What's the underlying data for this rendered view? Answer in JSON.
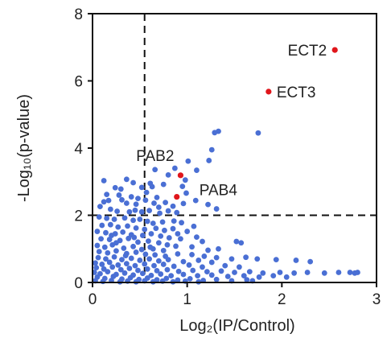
{
  "chart_data": {
    "type": "scatter",
    "title": "",
    "xlabel": "Log₂(IP/Control)",
    "ylabel": "-Log₁₀(p-value)",
    "xlim": [
      0,
      3
    ],
    "ylim": [
      0,
      8
    ],
    "xticks": [
      "0",
      "1",
      "2",
      "3"
    ],
    "yticks": [
      "0",
      "2",
      "4",
      "6",
      "8"
    ],
    "grid": false,
    "thresholds": {
      "x": 0.55,
      "y": 2.0,
      "style": "dashed"
    },
    "colors": {
      "background_points": "#4a6fd4",
      "highlighted_points": "#e0161b",
      "axis": "#111111"
    },
    "highlighted": [
      {
        "label": "ECT2",
        "x": 2.56,
        "y": 6.92
      },
      {
        "label": "ECT3",
        "x": 1.86,
        "y": 5.68
      },
      {
        "label": "PAB2",
        "x": 0.93,
        "y": 3.19
      },
      {
        "label": "PAB4",
        "x": 0.89,
        "y": 2.55
      }
    ],
    "points": [
      [
        1.33,
        4.5
      ],
      [
        1.29,
        4.46
      ],
      [
        1.75,
        4.45
      ],
      [
        1.26,
        3.95
      ],
      [
        1.01,
        3.61
      ],
      [
        1.23,
        3.63
      ],
      [
        0.87,
        3.4
      ],
      [
        0.66,
        3.36
      ],
      [
        1.1,
        3.34
      ],
      [
        0.8,
        3.2
      ],
      [
        0.98,
        3.05
      ],
      [
        0.12,
        3.03
      ],
      [
        0.36,
        3.07
      ],
      [
        0.43,
        2.97
      ],
      [
        0.61,
        2.95
      ],
      [
        0.75,
        2.92
      ],
      [
        0.24,
        2.82
      ],
      [
        0.3,
        2.78
      ],
      [
        0.52,
        2.83
      ],
      [
        0.63,
        2.85
      ],
      [
        0.95,
        2.86
      ],
      [
        0.15,
        2.62
      ],
      [
        0.41,
        2.55
      ],
      [
        0.57,
        2.68
      ],
      [
        0.68,
        2.53
      ],
      [
        0.99,
        2.66
      ],
      [
        1.09,
        2.44
      ],
      [
        0.12,
        2.4
      ],
      [
        0.31,
        2.46
      ],
      [
        0.36,
        2.36
      ],
      [
        0.46,
        2.33
      ],
      [
        0.56,
        2.45
      ],
      [
        0.65,
        2.36
      ],
      [
        0.77,
        2.38
      ],
      [
        0.85,
        2.27
      ],
      [
        0.96,
        2.35
      ],
      [
        1.22,
        2.32
      ],
      [
        1.31,
        2.19
      ],
      [
        0.19,
        2.18
      ],
      [
        0.26,
        2.12
      ],
      [
        0.39,
        2.1
      ],
      [
        0.45,
        2.15
      ],
      [
        0.52,
        2.1
      ],
      [
        0.6,
        2.14
      ],
      [
        0.71,
        2.06
      ],
      [
        0.8,
        2.13
      ],
      [
        0.89,
        2.08
      ],
      [
        0.07,
        1.95
      ],
      [
        0.15,
        1.91
      ],
      [
        0.23,
        1.88
      ],
      [
        0.34,
        1.92
      ],
      [
        0.43,
        1.85
      ],
      [
        0.5,
        1.88
      ],
      [
        0.58,
        1.82
      ],
      [
        0.64,
        1.76
      ],
      [
        0.74,
        1.8
      ],
      [
        0.86,
        1.83
      ],
      [
        0.94,
        1.78
      ],
      [
        0.1,
        1.7
      ],
      [
        0.19,
        1.72
      ],
      [
        0.27,
        1.65
      ],
      [
        0.37,
        1.68
      ],
      [
        0.46,
        1.62
      ],
      [
        0.55,
        1.58
      ],
      [
        0.67,
        1.61
      ],
      [
        0.76,
        1.55
      ],
      [
        0.85,
        1.6
      ],
      [
        1.0,
        1.52
      ],
      [
        0.05,
        1.52
      ],
      [
        0.14,
        1.48
      ],
      [
        0.24,
        1.45
      ],
      [
        0.32,
        1.5
      ],
      [
        0.41,
        1.42
      ],
      [
        0.53,
        1.4
      ],
      [
        0.62,
        1.45
      ],
      [
        0.72,
        1.38
      ],
      [
        0.81,
        1.33
      ],
      [
        0.93,
        1.3
      ],
      [
        1.1,
        1.35
      ],
      [
        1.16,
        1.22
      ],
      [
        0.09,
        1.3
      ],
      [
        0.18,
        1.28
      ],
      [
        0.29,
        1.25
      ],
      [
        0.38,
        1.31
      ],
      [
        0.48,
        1.2
      ],
      [
        0.59,
        1.23
      ],
      [
        0.7,
        1.18
      ],
      [
        0.79,
        1.12
      ],
      [
        0.88,
        1.08
      ],
      [
        1.05,
        1.06
      ],
      [
        0.05,
        1.1
      ],
      [
        0.13,
        1.05
      ],
      [
        0.21,
        1.12
      ],
      [
        0.33,
        1.02
      ],
      [
        0.43,
        1.07
      ],
      [
        0.52,
        0.98
      ],
      [
        0.64,
        1.0
      ],
      [
        0.75,
        0.95
      ],
      [
        1.22,
        0.96
      ],
      [
        1.33,
        1.0
      ],
      [
        1.52,
        1.22
      ],
      [
        1.57,
        1.18
      ],
      [
        0.07,
        0.92
      ],
      [
        0.16,
        0.88
      ],
      [
        0.25,
        0.94
      ],
      [
        0.36,
        0.86
      ],
      [
        0.46,
        0.9
      ],
      [
        0.56,
        0.84
      ],
      [
        0.66,
        0.82
      ],
      [
        0.77,
        0.78
      ],
      [
        0.9,
        0.85
      ],
      [
        1.05,
        0.83
      ],
      [
        1.18,
        0.78
      ],
      [
        1.31,
        0.74
      ],
      [
        1.47,
        0.7
      ],
      [
        1.62,
        0.75
      ],
      [
        1.74,
        0.7
      ],
      [
        1.94,
        0.68
      ],
      [
        2.15,
        0.66
      ],
      [
        2.3,
        0.62
      ],
      [
        0.06,
        0.74
      ],
      [
        0.14,
        0.7
      ],
      [
        0.23,
        0.76
      ],
      [
        0.31,
        0.68
      ],
      [
        0.41,
        0.72
      ],
      [
        0.5,
        0.66
      ],
      [
        0.6,
        0.7
      ],
      [
        0.7,
        0.64
      ],
      [
        0.8,
        0.68
      ],
      [
        0.96,
        0.62
      ],
      [
        1.12,
        0.66
      ],
      [
        1.26,
        0.6
      ],
      [
        0.03,
        0.58
      ],
      [
        0.1,
        0.54
      ],
      [
        0.18,
        0.6
      ],
      [
        0.27,
        0.52
      ],
      [
        0.36,
        0.56
      ],
      [
        0.45,
        0.5
      ],
      [
        0.55,
        0.55
      ],
      [
        0.65,
        0.5
      ],
      [
        0.75,
        0.54
      ],
      [
        0.86,
        0.48
      ],
      [
        1.02,
        0.52
      ],
      [
        1.16,
        0.46
      ],
      [
        1.4,
        0.5
      ],
      [
        1.55,
        0.46
      ],
      [
        0.04,
        0.44
      ],
      [
        0.12,
        0.4
      ],
      [
        0.21,
        0.46
      ],
      [
        0.3,
        0.38
      ],
      [
        0.39,
        0.42
      ],
      [
        0.48,
        0.36
      ],
      [
        0.58,
        0.4
      ],
      [
        0.68,
        0.35
      ],
      [
        0.79,
        0.38
      ],
      [
        0.91,
        0.33
      ],
      [
        1.06,
        0.36
      ],
      [
        1.21,
        0.32
      ],
      [
        1.36,
        0.34
      ],
      [
        1.5,
        0.3
      ],
      [
        1.66,
        0.32
      ],
      [
        1.8,
        0.28
      ],
      [
        1.98,
        0.3
      ],
      [
        2.13,
        0.28
      ],
      [
        2.27,
        0.3
      ],
      [
        2.45,
        0.28
      ],
      [
        2.6,
        0.3
      ],
      [
        2.72,
        0.3
      ],
      [
        2.77,
        0.28
      ],
      [
        2.8,
        0.3
      ],
      [
        0.02,
        0.3
      ],
      [
        0.08,
        0.26
      ],
      [
        0.16,
        0.32
      ],
      [
        0.25,
        0.24
      ],
      [
        0.34,
        0.28
      ],
      [
        0.43,
        0.22
      ],
      [
        0.53,
        0.27
      ],
      [
        0.62,
        0.21
      ],
      [
        0.72,
        0.25
      ],
      [
        0.83,
        0.2
      ],
      [
        0.96,
        0.24
      ],
      [
        1.11,
        0.2
      ],
      [
        1.26,
        0.22
      ],
      [
        1.43,
        0.18
      ],
      [
        1.6,
        0.2
      ],
      [
        1.76,
        0.16
      ],
      [
        1.91,
        0.2
      ],
      [
        2.05,
        0.16
      ],
      [
        0.05,
        0.16
      ],
      [
        0.13,
        0.12
      ],
      [
        0.22,
        0.18
      ],
      [
        0.31,
        0.1
      ],
      [
        0.4,
        0.14
      ],
      [
        0.49,
        0.09
      ],
      [
        0.58,
        0.13
      ],
      [
        0.68,
        0.08
      ],
      [
        0.78,
        0.12
      ],
      [
        0.9,
        0.07
      ],
      [
        1.03,
        0.11
      ],
      [
        1.17,
        0.06
      ],
      [
        1.31,
        0.09
      ],
      [
        1.47,
        0.05
      ],
      [
        1.63,
        0.08
      ],
      [
        1.69,
        0.05
      ],
      [
        0.03,
        0.05
      ],
      [
        0.11,
        0.03
      ],
      [
        0.2,
        0.06
      ],
      [
        0.29,
        0.02
      ],
      [
        0.37,
        0.04
      ],
      [
        0.46,
        0.02
      ],
      [
        0.55,
        0.05
      ],
      [
        0.64,
        0.02
      ],
      [
        0.74,
        0.04
      ],
      [
        0.85,
        0.02
      ],
      [
        0.98,
        0.04
      ],
      [
        1.12,
        0.02
      ],
      [
        0.08,
        2.26
      ],
      [
        0.17,
        2.44
      ],
      [
        0.28,
        2.6
      ],
      [
        0.48,
        2.5
      ],
      [
        0.7,
        2.24
      ],
      [
        0.2,
        1.4
      ],
      [
        0.44,
        1.34
      ],
      [
        0.61,
        1.05
      ],
      [
        0.35,
        0.8
      ],
      [
        0.25,
        1.18
      ],
      [
        0.9,
        1.45
      ],
      [
        1.07,
        1.67
      ]
    ]
  }
}
